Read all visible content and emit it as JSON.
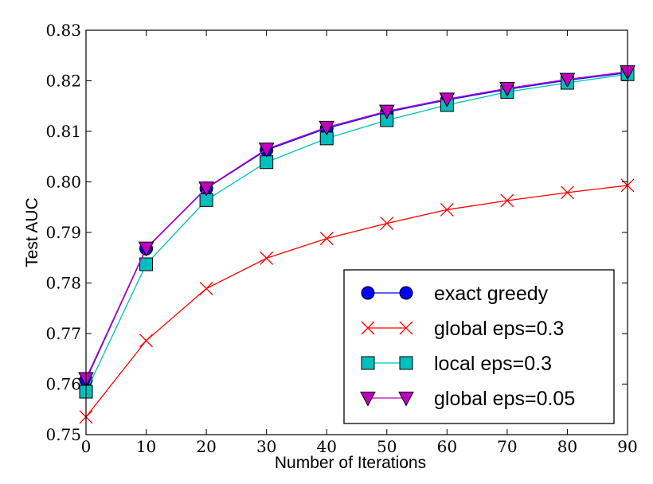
{
  "chart_data": {
    "type": "line",
    "title": "",
    "xlabel": "Number of Iterations",
    "ylabel": "Test AUC",
    "xlim": [
      0,
      90
    ],
    "ylim": [
      0.75,
      0.83
    ],
    "xticks": [
      0,
      10,
      20,
      30,
      40,
      50,
      60,
      70,
      80,
      90
    ],
    "yticks": [
      0.75,
      0.76,
      0.77,
      0.78,
      0.79,
      0.8,
      0.81,
      0.82,
      0.83
    ],
    "ytick_labels": [
      "0.75",
      "0.76",
      "0.77",
      "0.78",
      "0.79",
      "0.80",
      "0.81",
      "0.82",
      "0.83"
    ],
    "grid": false,
    "legend_position": "lower-right",
    "x": [
      0,
      10,
      20,
      30,
      40,
      50,
      60,
      70,
      80,
      90
    ],
    "series": [
      {
        "name": "exact greedy",
        "color": "#0000ff",
        "marker": "circle",
        "values": [
          0.7608,
          0.7868,
          0.7987,
          0.8063,
          0.8106,
          0.8138,
          0.8162,
          0.8183,
          0.8201,
          0.8216
        ]
      },
      {
        "name": "global eps=0.3",
        "color": "#ff0000",
        "marker": "x",
        "values": [
          0.7535,
          0.7686,
          0.7789,
          0.7849,
          0.7888,
          0.7918,
          0.7945,
          0.7963,
          0.7979,
          0.7993
        ]
      },
      {
        "name": "local eps=0.3",
        "color": "#00bfbf",
        "marker": "square",
        "values": [
          0.7585,
          0.7837,
          0.7964,
          0.8039,
          0.8086,
          0.8122,
          0.8152,
          0.8178,
          0.8196,
          0.8213
        ]
      },
      {
        "name": "global eps=0.05",
        "color": "#bf00bf",
        "marker": "triangle-down",
        "values": [
          0.7611,
          0.7869,
          0.7988,
          0.8065,
          0.8108,
          0.814,
          0.8164,
          0.8185,
          0.8203,
          0.8218
        ]
      }
    ]
  }
}
